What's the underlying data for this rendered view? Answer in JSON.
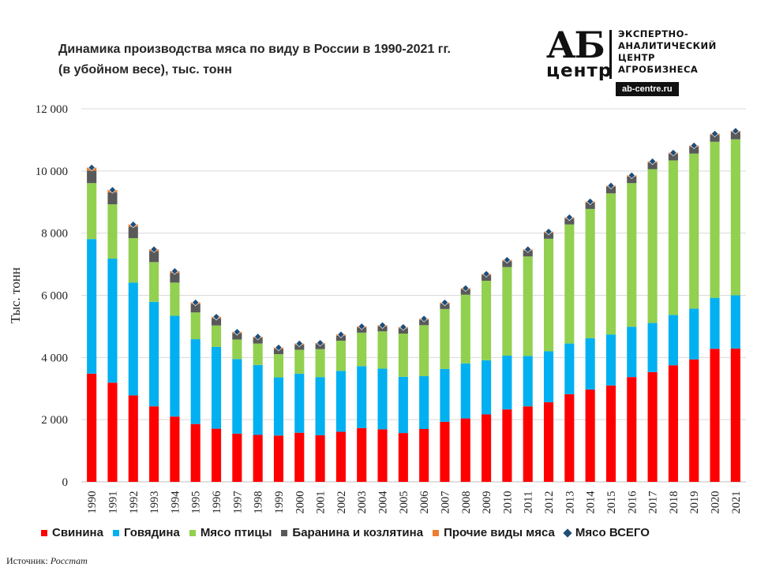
{
  "title": {
    "line1": "Динамика производства  мяса по виду в России в 1990-2021 гг.",
    "line2": "(в убойном весе), тыс. тонн"
  },
  "logo": {
    "ab": "АБ",
    "center": "центр",
    "text_lines": [
      "ЭКСПЕРТНО-",
      "АНАЛИТИЧЕСКИЙ",
      "ЦЕНТР",
      "АГРОБИЗНЕСА"
    ],
    "url": "ab-centre.ru"
  },
  "source": {
    "label": "Источник:",
    "value": "Росстат"
  },
  "colors": {
    "pork": "#ff0000",
    "beef": "#00b0f0",
    "poultry": "#92d050",
    "lamb": "#595959",
    "other": "#ed7d31",
    "total": "#1f4e79"
  },
  "chart_data": {
    "type": "bar",
    "stacked": true,
    "title": "Динамика производства  мяса по виду в России в 1990-2021 гг. (в убойном весе), тыс. тонн",
    "ylabel": "Тыс. тонн",
    "xlabel": "",
    "ylim": [
      0,
      12000
    ],
    "yticks": [
      0,
      2000,
      4000,
      6000,
      8000,
      10000,
      12000
    ],
    "ytick_labels": [
      "0",
      "2 000",
      "4 000",
      "6 000",
      "8 000",
      "10 000",
      "12 000"
    ],
    "grid": true,
    "legend": "bottom",
    "categories": [
      "1990",
      "1991",
      "1992",
      "1993",
      "1994",
      "1995",
      "1996",
      "1997",
      "1998",
      "1999",
      "2000",
      "2001",
      "2002",
      "2003",
      "2004",
      "2005",
      "2006",
      "2007",
      "2008",
      "2009",
      "2010",
      "2011",
      "2012",
      "2013",
      "2014",
      "2015",
      "2016",
      "2017",
      "2018",
      "2019",
      "2020",
      "2021"
    ],
    "series": [
      {
        "name": "Свинина",
        "key": "pork",
        "values": [
          3480,
          3190,
          2780,
          2430,
          2100,
          1860,
          1710,
          1550,
          1510,
          1490,
          1580,
          1500,
          1610,
          1730,
          1690,
          1570,
          1700,
          1930,
          2040,
          2170,
          2330,
          2430,
          2560,
          2820,
          2970,
          3100,
          3370,
          3530,
          3750,
          3940,
          4280,
          4290
        ]
      },
      {
        "name": "Говядина",
        "key": "beef",
        "values": [
          4330,
          3990,
          3630,
          3360,
          3240,
          2730,
          2630,
          2400,
          2250,
          1870,
          1900,
          1870,
          1960,
          1990,
          1950,
          1810,
          1700,
          1700,
          1770,
          1740,
          1730,
          1620,
          1640,
          1630,
          1650,
          1640,
          1620,
          1580,
          1620,
          1630,
          1640,
          1710
        ]
      },
      {
        "name": "Мясо птицы",
        "key": "poultry",
        "values": [
          1800,
          1750,
          1430,
          1280,
          1070,
          860,
          690,
          630,
          690,
          750,
          770,
          900,
          970,
          1080,
          1200,
          1390,
          1640,
          1930,
          2210,
          2560,
          2850,
          3200,
          3620,
          3830,
          4160,
          4540,
          4620,
          4950,
          4970,
          4990,
          5020,
          5020
        ]
      },
      {
        "name": "Баранина и козлятина",
        "key": "lamb",
        "values": [
          400,
          380,
          370,
          350,
          310,
          270,
          230,
          200,
          180,
          170,
          160,
          160,
          160,
          160,
          160,
          170,
          170,
          170,
          170,
          180,
          190,
          190,
          190,
          190,
          200,
          210,
          210,
          210,
          210,
          220,
          220,
          230
        ]
      },
      {
        "name": "Прочие виды мяса",
        "key": "other",
        "values": [
          100,
          80,
          70,
          60,
          60,
          50,
          50,
          45,
          40,
          40,
          40,
          40,
          40,
          40,
          40,
          40,
          40,
          40,
          40,
          40,
          40,
          40,
          40,
          40,
          40,
          40,
          40,
          40,
          40,
          40,
          40,
          40
        ]
      },
      {
        "name": "Мясо ВСЕГО",
        "key": "total",
        "type": "scatter",
        "values": [
          10110,
          9390,
          8280,
          7480,
          6780,
          5770,
          5310,
          4825,
          4670,
          4320,
          4450,
          4470,
          4740,
          5000,
          5040,
          4980,
          5250,
          5770,
          6230,
          6690,
          7140,
          7480,
          8050,
          8510,
          9020,
          9530,
          9860,
          10310,
          10590,
          10820,
          11200,
          11290
        ]
      }
    ]
  }
}
